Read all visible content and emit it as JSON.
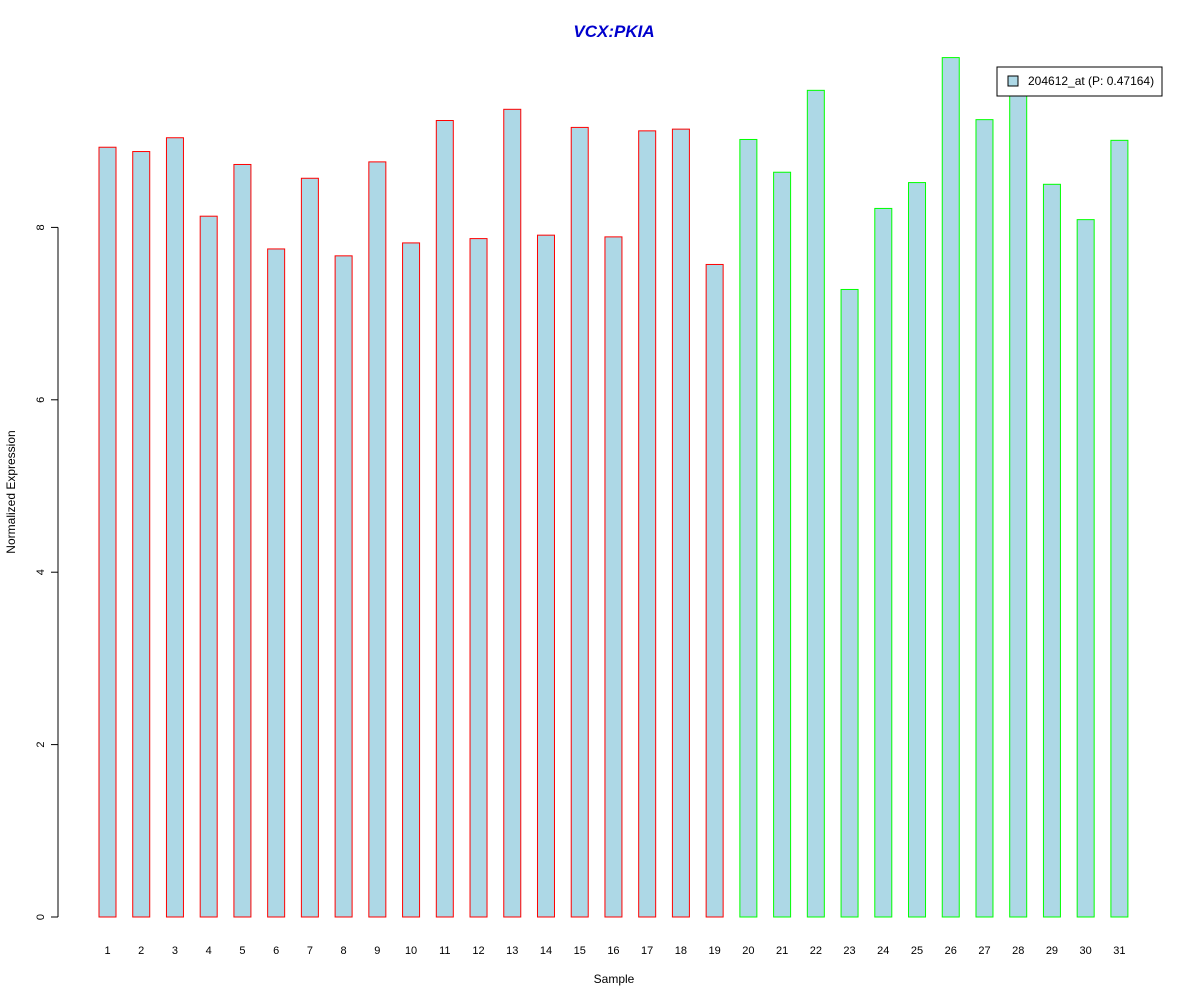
{
  "chart_data": {
    "type": "bar",
    "title": "VCX:PKIA",
    "xlabel": "Sample",
    "ylabel": "Normalized Expression",
    "categories": [
      "1",
      "2",
      "3",
      "4",
      "5",
      "6",
      "7",
      "8",
      "9",
      "10",
      "11",
      "12",
      "13",
      "14",
      "15",
      "16",
      "17",
      "18",
      "19",
      "20",
      "21",
      "22",
      "23",
      "24",
      "25",
      "26",
      "27",
      "28",
      "29",
      "30",
      "31"
    ],
    "values": [
      8.93,
      8.88,
      9.04,
      8.13,
      8.73,
      7.75,
      8.57,
      7.67,
      8.76,
      7.82,
      9.24,
      7.87,
      9.37,
      7.91,
      9.16,
      7.89,
      9.12,
      9.14,
      7.57,
      9.02,
      8.64,
      9.59,
      7.28,
      8.22,
      8.52,
      9.97,
      9.25,
      9.61,
      8.5,
      8.09,
      9.01
    ],
    "groups": [
      1,
      1,
      1,
      1,
      1,
      1,
      1,
      1,
      1,
      1,
      1,
      1,
      1,
      1,
      1,
      1,
      1,
      1,
      1,
      2,
      2,
      2,
      2,
      2,
      2,
      2,
      2,
      2,
      2,
      2,
      2
    ],
    "yticks": [
      0,
      2,
      4,
      6,
      8
    ],
    "ylim": [
      0,
      10
    ],
    "grid": false,
    "legend": {
      "position": "top-right",
      "entries": [
        {
          "label": "204612_at (P: 0.47164)"
        }
      ]
    },
    "colors": {
      "bar_fill": "#add8e6",
      "group1_border": "#ff0000",
      "group2_border": "#00ff00",
      "title": "#0000cd"
    }
  }
}
